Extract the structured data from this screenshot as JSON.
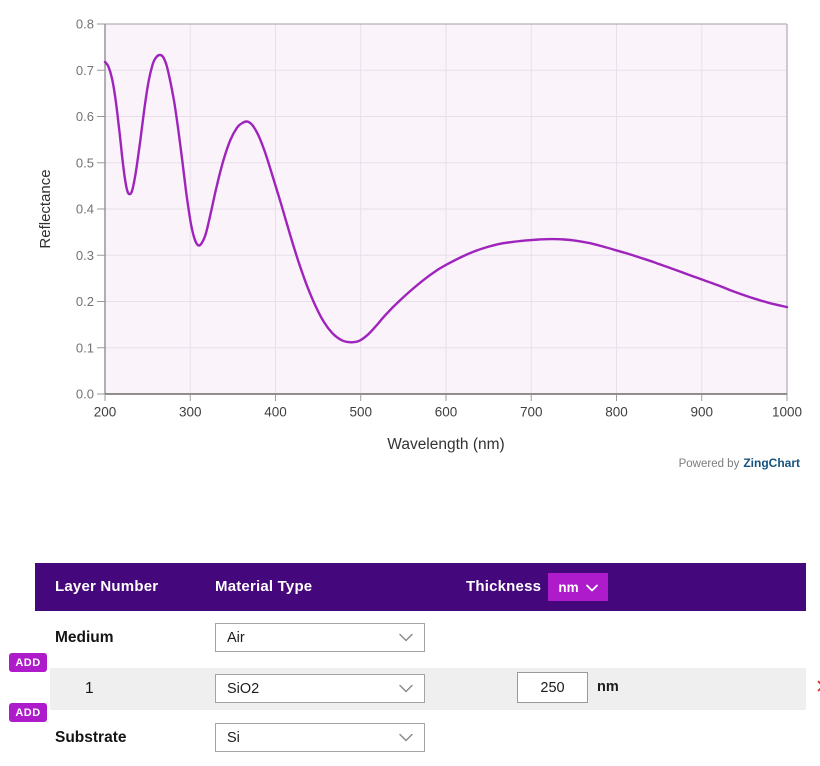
{
  "chart_data": {
    "type": "line",
    "title": "",
    "xlabel": "Wavelength (nm)",
    "ylabel": "Reflectance",
    "xlim": [
      200,
      1000
    ],
    "ylim": [
      0,
      0.8
    ],
    "x_ticks": [
      200,
      300,
      400,
      500,
      600,
      700,
      800,
      900,
      1000
    ],
    "y_ticks": [
      0.0,
      0.1,
      0.2,
      0.3,
      0.4,
      0.5,
      0.6,
      0.7,
      0.8
    ],
    "grid": true,
    "legend": "none",
    "series": [
      {
        "name": "Reflectance",
        "color": "#9f24bb",
        "points": [
          [
            200,
            0.718
          ],
          [
            204,
            0.708
          ],
          [
            208,
            0.684
          ],
          [
            212,
            0.642
          ],
          [
            216,
            0.583
          ],
          [
            220,
            0.516
          ],
          [
            223,
            0.47
          ],
          [
            226,
            0.44
          ],
          [
            229,
            0.432
          ],
          [
            232,
            0.441
          ],
          [
            236,
            0.478
          ],
          [
            241,
            0.543
          ],
          [
            246,
            0.614
          ],
          [
            251,
            0.675
          ],
          [
            256,
            0.713
          ],
          [
            260,
            0.728
          ],
          [
            264,
            0.733
          ],
          [
            268,
            0.729
          ],
          [
            272,
            0.712
          ],
          [
            276,
            0.681
          ],
          [
            281,
            0.633
          ],
          [
            286,
            0.571
          ],
          [
            291,
            0.499
          ],
          [
            296,
            0.426
          ],
          [
            301,
            0.366
          ],
          [
            305,
            0.336
          ],
          [
            309,
            0.322
          ],
          [
            313,
            0.325
          ],
          [
            318,
            0.345
          ],
          [
            324,
            0.391
          ],
          [
            331,
            0.449
          ],
          [
            339,
            0.506
          ],
          [
            347,
            0.549
          ],
          [
            355,
            0.576
          ],
          [
            361,
            0.586
          ],
          [
            367,
            0.589
          ],
          [
            373,
            0.581
          ],
          [
            380,
            0.559
          ],
          [
            388,
            0.521
          ],
          [
            397,
            0.469
          ],
          [
            407,
            0.408
          ],
          [
            417,
            0.345
          ],
          [
            427,
            0.286
          ],
          [
            437,
            0.234
          ],
          [
            447,
            0.19
          ],
          [
            457,
            0.155
          ],
          [
            467,
            0.131
          ],
          [
            477,
            0.117
          ],
          [
            487,
            0.112
          ],
          [
            497,
            0.114
          ],
          [
            507,
            0.126
          ],
          [
            517,
            0.145
          ],
          [
            529,
            0.171
          ],
          [
            544,
            0.199
          ],
          [
            559,
            0.224
          ],
          [
            574,
            0.247
          ],
          [
            589,
            0.267
          ],
          [
            604,
            0.283
          ],
          [
            619,
            0.297
          ],
          [
            634,
            0.309
          ],
          [
            649,
            0.318
          ],
          [
            664,
            0.325
          ],
          [
            679,
            0.329
          ],
          [
            694,
            0.332
          ],
          [
            709,
            0.334
          ],
          [
            724,
            0.335
          ],
          [
            739,
            0.334
          ],
          [
            754,
            0.331
          ],
          [
            769,
            0.326
          ],
          [
            784,
            0.319
          ],
          [
            799,
            0.311
          ],
          [
            814,
            0.303
          ],
          [
            829,
            0.294
          ],
          [
            844,
            0.285
          ],
          [
            859,
            0.275
          ],
          [
            874,
            0.265
          ],
          [
            889,
            0.255
          ],
          [
            904,
            0.245
          ],
          [
            919,
            0.235
          ],
          [
            934,
            0.224
          ],
          [
            949,
            0.214
          ],
          [
            964,
            0.205
          ],
          [
            979,
            0.197
          ],
          [
            1000,
            0.188
          ]
        ]
      }
    ]
  },
  "branding": {
    "powered_by": "Powered by",
    "brand": "ZingChart"
  },
  "table": {
    "header": {
      "layer_number": "Layer Number",
      "material_type": "Material Type",
      "thickness": "Thickness",
      "unit_select_value": "nm"
    },
    "rows": [
      {
        "label": "Medium",
        "material": "Air"
      },
      {
        "label": "1",
        "material": "SiO2",
        "thickness": "250",
        "unit": "nm"
      },
      {
        "label": "Substrate",
        "material": "Si"
      }
    ],
    "add_label": "ADD",
    "delete_icon": "✕"
  },
  "colors": {
    "header_bg": "#45087c",
    "accent": "#ad1bca",
    "row_shade": "#efefef",
    "curve": "#9f24bb",
    "delete_red": "#e02b33",
    "brand_blue": "#15537e",
    "plot_bg": "#faf3fa",
    "grid": "#e7dfe9"
  }
}
